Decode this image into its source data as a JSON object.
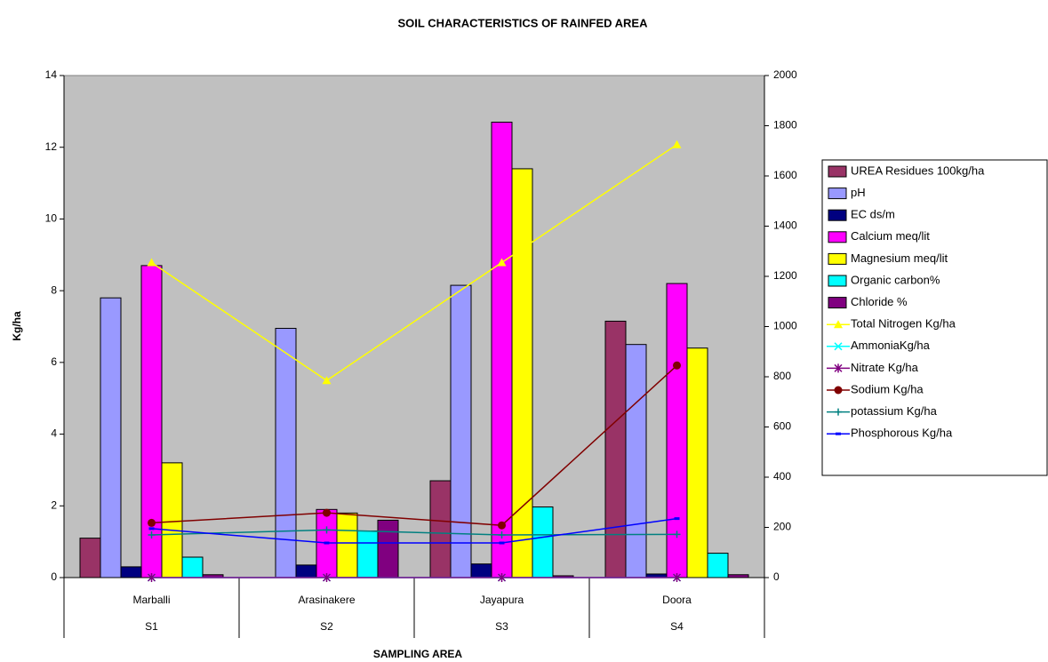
{
  "chart_data": {
    "type": "bar",
    "title": "SOIL CHARACTERISTICS  OF RAINFED AREA",
    "y_label": "Kg/ha",
    "x_label": "SAMPLING AREA",
    "categories": [
      "Marballi",
      "Arasinakere",
      "Jayapura",
      "Doora"
    ],
    "category_codes": [
      "S1",
      "S2",
      "S3",
      "S4"
    ],
    "ylim": [
      0,
      14
    ],
    "yticks": [
      0,
      2,
      4,
      6,
      8,
      10,
      12,
      14
    ],
    "y2lim": [
      0,
      2000
    ],
    "y2ticks": [
      0,
      200,
      400,
      600,
      800,
      1000,
      1200,
      1400,
      1600,
      1800,
      2000
    ],
    "plot_background": "#c0c0c0",
    "series": [
      {
        "name": "UREA Residues 100kg/ha",
        "type": "bar",
        "color": "#993366",
        "values": [
          1.1,
          0,
          2.7,
          7.15
        ]
      },
      {
        "name": "pH",
        "type": "bar",
        "color": "#9999ff",
        "values": [
          7.8,
          6.95,
          8.15,
          6.5
        ]
      },
      {
        "name": "EC ds/m",
        "type": "bar",
        "color": "#000080",
        "values": [
          0.3,
          0.35,
          0.38,
          0.1
        ]
      },
      {
        "name": "Calcium meq/lit",
        "type": "bar",
        "color": "#ff00ff",
        "values": [
          8.7,
          1.9,
          12.7,
          8.2
        ]
      },
      {
        "name": "Magnesium meq/lit",
        "type": "bar",
        "color": "#ffff00",
        "values": [
          3.2,
          1.8,
          11.4,
          6.4
        ]
      },
      {
        "name": "Organic carbon%",
        "type": "bar",
        "color": "#00ffff",
        "values": [
          0.57,
          1.3,
          1.97,
          0.68
        ]
      },
      {
        "name": "Chloride %",
        "type": "bar",
        "color": "#800080",
        "values": [
          0.08,
          1.6,
          0.05,
          0.08
        ]
      },
      {
        "name": "Total Nitrogen  Kg/ha",
        "type": "line",
        "axis": "y2",
        "marker": "triangle",
        "color": "#ffff00",
        "values": [
          1255,
          785,
          1255,
          1725
        ]
      },
      {
        "name": "AmmoniaKg/ha",
        "type": "line",
        "axis": "y2",
        "marker": "x",
        "color": "#00ffff",
        "values": [
          0,
          0,
          0,
          0
        ]
      },
      {
        "name": "Nitrate    Kg/ha",
        "type": "line",
        "axis": "y2",
        "marker": "star",
        "color": "#800080",
        "values": [
          0,
          0,
          0,
          0
        ]
      },
      {
        "name": "Sodium Kg/ha",
        "type": "line",
        "axis": "y2",
        "marker": "circle",
        "color": "#800000",
        "values": [
          218,
          258,
          208,
          845
        ]
      },
      {
        "name": "potassium Kg/ha",
        "type": "line",
        "axis": "y2",
        "marker": "plus",
        "color": "#008080",
        "values": [
          170,
          190,
          170,
          172
        ]
      },
      {
        "name": "Phosphorous Kg/ha",
        "type": "line",
        "axis": "y2",
        "marker": "dash",
        "color": "#0000ff",
        "values": [
          195,
          138,
          138,
          235
        ]
      }
    ]
  }
}
